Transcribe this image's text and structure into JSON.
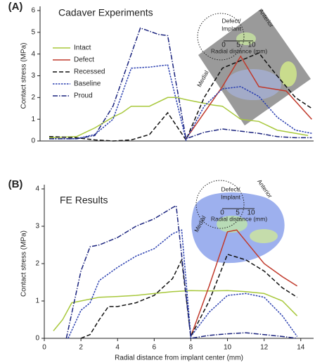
{
  "chart_data": [
    {
      "type": "line",
      "panel_label": "(A)",
      "title": "Cadaver Experiments",
      "ylabel": "Contact stress (MPa)",
      "xlim": [
        0,
        15
      ],
      "ylim": [
        0,
        6
      ],
      "yticks": [
        0,
        1,
        2,
        3,
        4,
        5,
        6
      ],
      "legend": "upper left",
      "inset": {
        "labels": [
          "Anterior",
          "Medial",
          "Defect/",
          "Implant",
          "Radial distance (mm)"
        ],
        "scale": [
          0,
          5,
          10
        ]
      },
      "series": [
        {
          "name": "Intact",
          "color": "#a8c83c",
          "dash": "solid",
          "x": [
            0.5,
            2,
            3,
            4,
            4.5,
            5,
            6,
            7,
            7.5,
            8,
            9.5,
            10,
            11,
            12,
            13,
            14.7
          ],
          "values": [
            0.15,
            0.2,
            0.6,
            1.1,
            1.3,
            1.6,
            1.6,
            2.0,
            2.0,
            1.9,
            1.65,
            1.6,
            1.0,
            0.9,
            0.5,
            0.25
          ]
        },
        {
          "name": "Defect",
          "color": "#c0392b",
          "dash": "solid",
          "x": [
            8,
            10,
            11,
            12,
            13.5,
            14.9
          ],
          "values": [
            0.1,
            2.5,
            3.9,
            2.5,
            2.3,
            1.0
          ]
        },
        {
          "name": "Recessed",
          "color": "#111111",
          "dash": "dashed",
          "x": [
            0.5,
            2,
            3,
            4,
            5,
            6,
            7,
            8,
            9,
            10,
            11,
            12,
            13,
            14,
            14.9
          ],
          "values": [
            0.2,
            0.15,
            0.05,
            0,
            0.05,
            0.3,
            1.3,
            0.05,
            2.0,
            3.35,
            3.7,
            4.05,
            3.0,
            2.0,
            1.5
          ]
        },
        {
          "name": "Baseline",
          "color": "#2a3fb0",
          "dash": "dotted",
          "x": [
            0.5,
            2,
            3,
            4,
            5,
            6,
            7,
            8,
            9,
            10,
            11,
            12,
            13,
            14,
            14.9
          ],
          "values": [
            0.1,
            0.1,
            0.3,
            1.0,
            3.35,
            3.4,
            3.5,
            0.05,
            1.6,
            2.4,
            2.5,
            2.05,
            1.1,
            0.5,
            0.35
          ]
        },
        {
          "name": "Proud",
          "color": "#1a237e",
          "dash": "dashdot",
          "x": [
            0.5,
            2,
            3,
            4,
            5,
            5.5,
            6.5,
            7,
            8,
            9,
            10,
            11,
            12,
            13,
            14,
            14.9
          ],
          "values": [
            0.1,
            0.1,
            0.25,
            1.6,
            4.0,
            5.2,
            4.9,
            4.85,
            0.1,
            0.4,
            0.55,
            0.45,
            0.35,
            0.2,
            0.15,
            0.15
          ]
        }
      ]
    },
    {
      "type": "line",
      "panel_label": "(B)",
      "title": "FE Results",
      "ylabel": "Contact stress (MPa)",
      "xlabel": "Radial distance from implant center (mm)",
      "xlim": [
        0,
        14.7
      ],
      "ylim": [
        0,
        4
      ],
      "xticks": [
        0,
        2,
        4,
        6,
        8,
        10,
        12,
        14
      ],
      "yticks": [
        0,
        1,
        2,
        3,
        4
      ],
      "inset": {
        "labels": [
          "Anterior",
          "Medial",
          "Defect/",
          "Implant",
          "Radial distance (mm)"
        ],
        "scale": [
          0,
          5,
          10
        ]
      },
      "series": [
        {
          "color": "#a8c83c",
          "dash": "solid",
          "x": [
            0.5,
            1,
            1.5,
            2,
            2.5,
            3,
            4,
            5,
            6,
            7,
            8,
            9,
            10,
            11,
            12,
            13,
            13.8
          ],
          "values": [
            0.2,
            0.5,
            0.95,
            1.0,
            1.05,
            1.1,
            1.12,
            1.15,
            1.2,
            1.25,
            1.28,
            1.27,
            1.28,
            1.25,
            1.2,
            1.0,
            0.6
          ]
        },
        {
          "color": "#c0392b",
          "dash": "solid",
          "x": [
            8,
            9,
            10,
            10.5,
            11,
            12,
            13,
            13.8
          ],
          "values": [
            0.05,
            1.4,
            2.85,
            2.9,
            2.6,
            2.0,
            1.65,
            1.4
          ]
        },
        {
          "color": "#111111",
          "dash": "dashed",
          "x": [
            2,
            2.5,
            3,
            3.5,
            4,
            5,
            6,
            7,
            7.5,
            8,
            9,
            10,
            11,
            12,
            13,
            13.8
          ],
          "values": [
            0,
            0.1,
            0.5,
            0.85,
            0.85,
            0.95,
            1.15,
            1.6,
            2.1,
            0.05,
            1.0,
            2.25,
            2.1,
            1.8,
            1.35,
            1.1
          ]
        },
        {
          "color": "#2a3fb0",
          "dash": "dotted",
          "x": [
            1.3,
            2,
            2.5,
            3,
            4,
            5,
            6,
            7,
            7.5,
            8,
            9,
            10,
            11,
            12,
            13,
            13.8
          ],
          "values": [
            0,
            0.75,
            0.95,
            1.55,
            1.9,
            2.2,
            2.4,
            2.8,
            2.9,
            0.05,
            0.7,
            1.15,
            1.2,
            1.1,
            0.6,
            0.05
          ]
        },
        {
          "color": "#1a237e",
          "dash": "dashdot",
          "x": [
            1.2,
            2,
            2.5,
            3,
            4,
            5,
            6,
            7,
            7.2,
            8,
            9,
            10,
            11,
            12,
            13,
            13.8
          ],
          "values": [
            0,
            1.8,
            2.45,
            2.5,
            2.7,
            3.0,
            3.2,
            3.5,
            3.55,
            0,
            0.08,
            0.12,
            0.15,
            0.1,
            0.05,
            0
          ]
        }
      ]
    }
  ]
}
